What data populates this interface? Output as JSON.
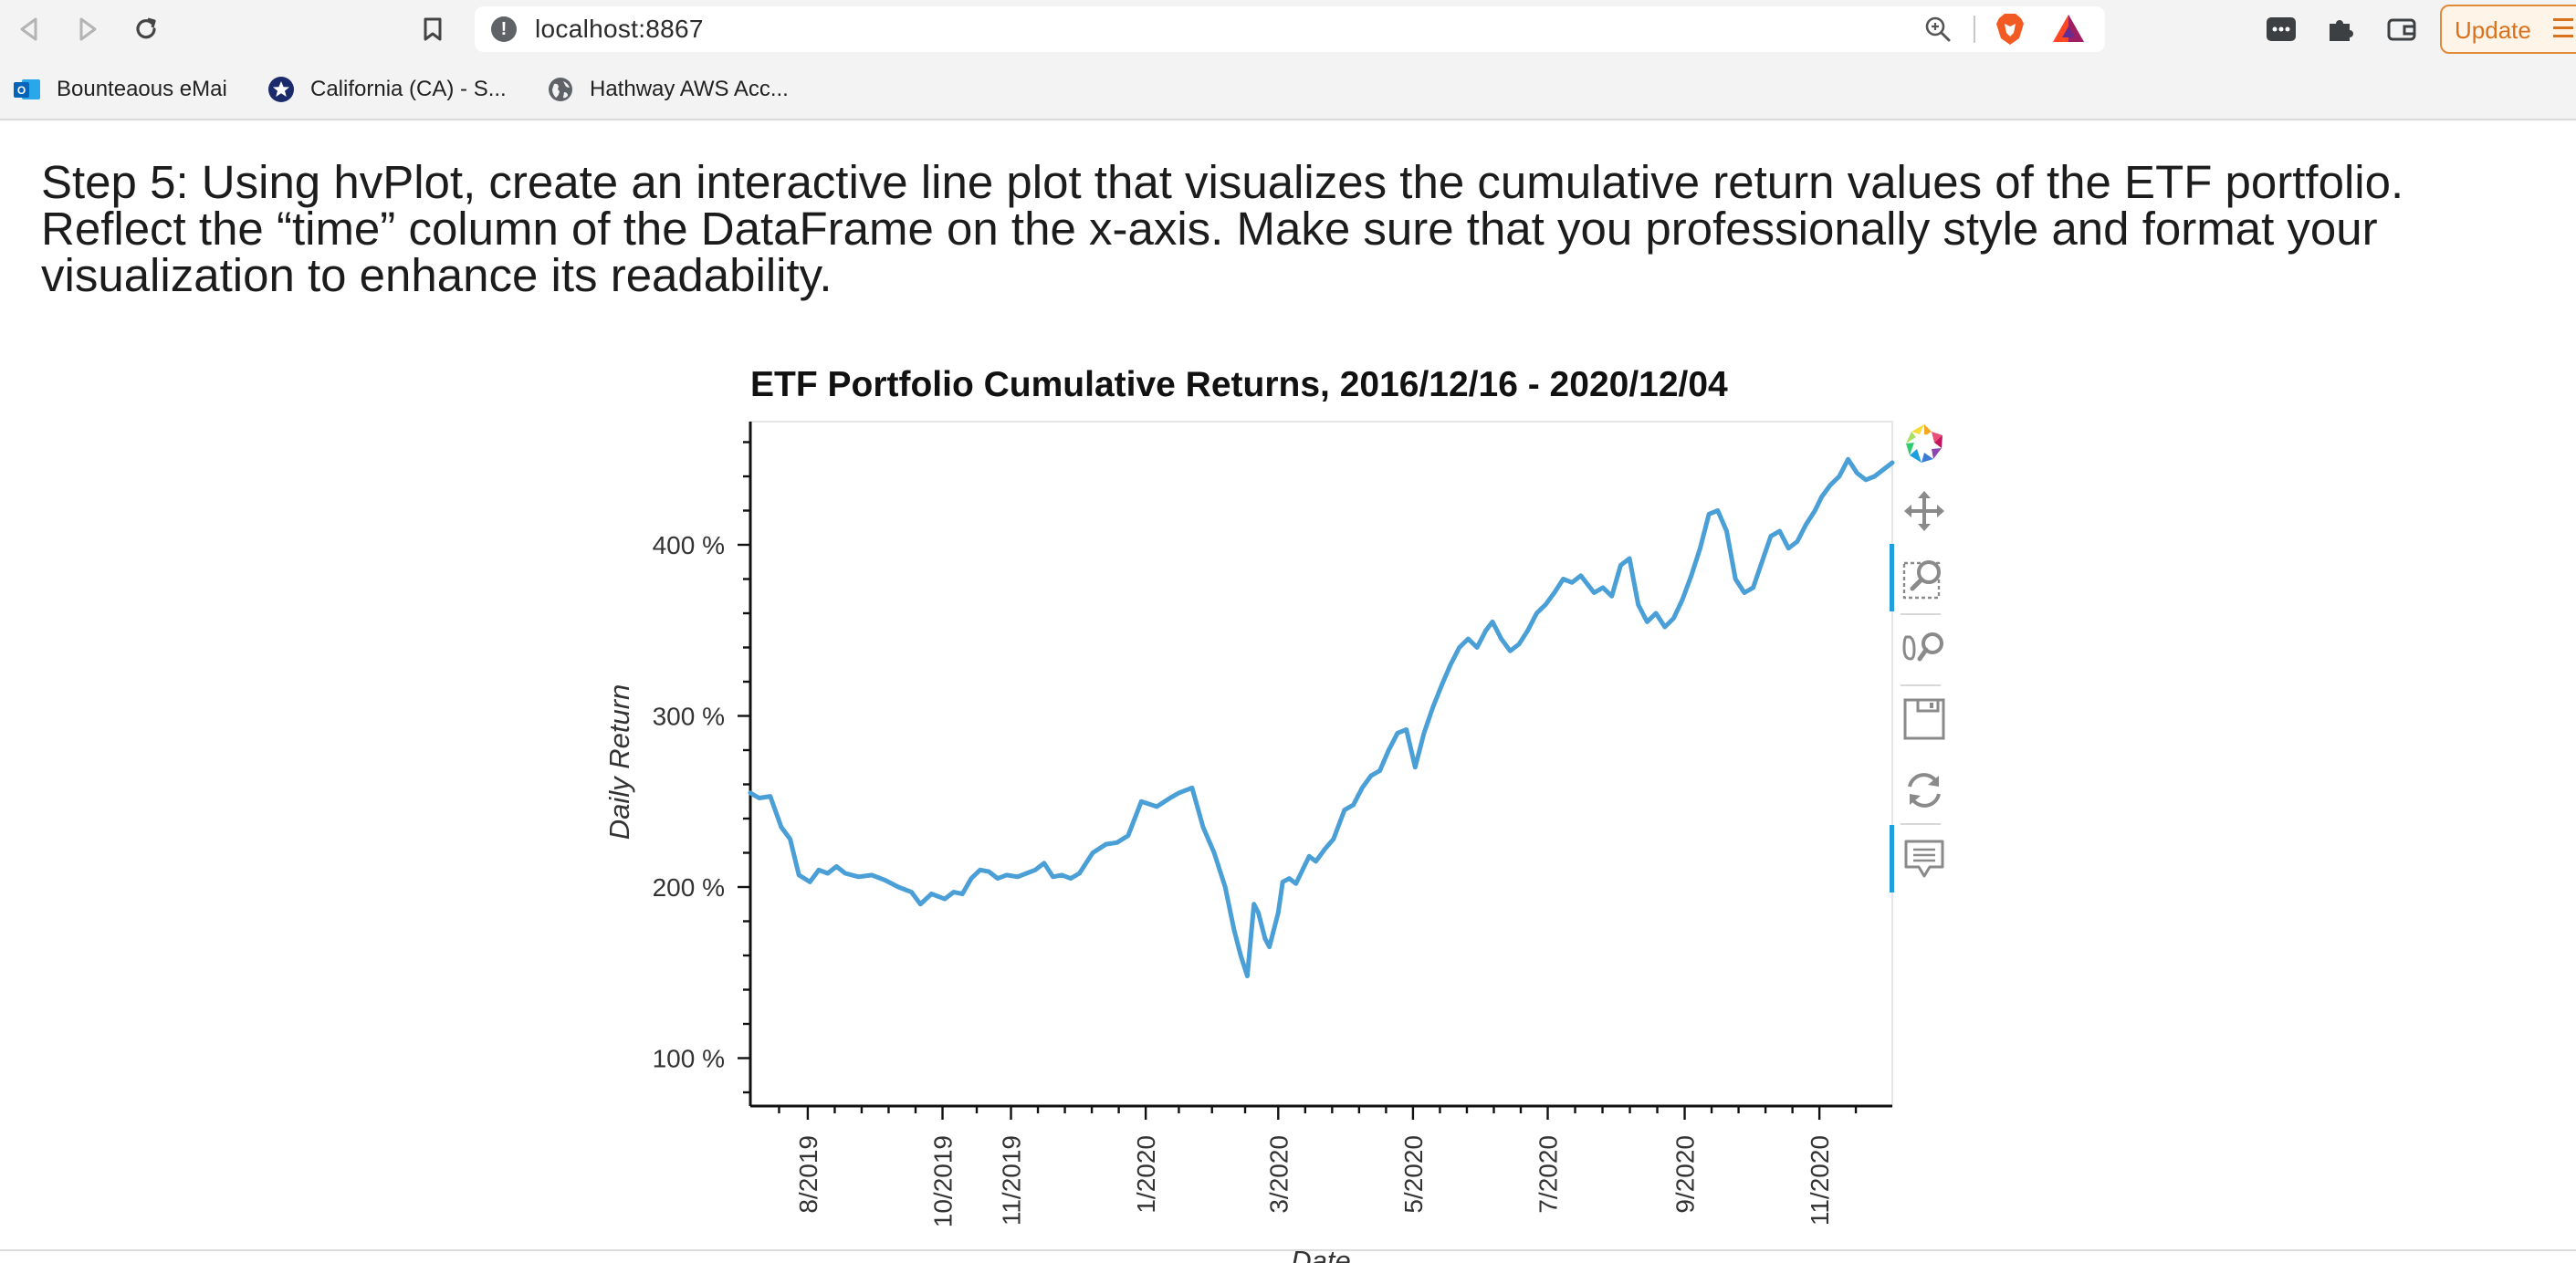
{
  "browser": {
    "url": "localhost:8867",
    "update_label": "Update",
    "bookmarks": [
      {
        "label": "Bounteaous eMai",
        "icon": "outlook-icon"
      },
      {
        "label": "California (CA) - S...",
        "icon": "star-badge-icon"
      },
      {
        "label": "Hathway AWS Acc...",
        "icon": "globe-icon"
      }
    ]
  },
  "page": {
    "instruction": "Step 5: Using hvPlot, create an interactive line plot that visualizes the cumulative return values of the ETF portfolio. Reflect the “time” column of the DataFrame on the x-axis. Make sure that you professionally style and format your visualization to enhance its readability."
  },
  "chart_data": {
    "type": "line",
    "title": "ETF Portfolio Cumulative Returns, 2016/12/16 - 2020/12/04",
    "xlabel": "Date",
    "ylabel": "Daily Return",
    "x_tick_labels": [
      "8/2019",
      "10/2019",
      "11/2019",
      "1/2020",
      "3/2020",
      "5/2020",
      "7/2020",
      "9/2020",
      "11/2020"
    ],
    "y_tick_labels": [
      "100 %",
      "200 %",
      "300 %",
      "400 %"
    ],
    "y_ticks": [
      100,
      200,
      300,
      400
    ],
    "ylim": [
      72,
      472
    ],
    "xlim": [
      "2019-07-06",
      "2020-12-04"
    ],
    "grid": false,
    "line_color": "#4a9fd6",
    "series": [
      {
        "x": [
          "2019-07-06",
          "2019-07-10",
          "2019-07-15",
          "2019-07-20",
          "2019-07-24",
          "2019-07-28",
          "2019-08-02",
          "2019-08-06",
          "2019-08-10",
          "2019-08-14",
          "2019-08-18",
          "2019-08-24",
          "2019-08-30",
          "2019-09-05",
          "2019-09-11",
          "2019-09-17",
          "2019-09-21",
          "2019-09-26",
          "2019-10-02",
          "2019-10-06",
          "2019-10-10",
          "2019-10-14",
          "2019-10-18",
          "2019-10-22",
          "2019-10-26",
          "2019-10-30",
          "2019-11-04",
          "2019-11-08",
          "2019-11-12",
          "2019-11-16",
          "2019-11-20",
          "2019-11-24",
          "2019-11-28",
          "2019-12-02",
          "2019-12-08",
          "2019-12-14",
          "2019-12-19",
          "2019-12-24",
          "2019-12-30",
          "2020-01-06",
          "2020-01-12",
          "2020-01-16",
          "2020-01-22",
          "2020-01-27",
          "2020-02-01",
          "2020-02-06",
          "2020-02-10",
          "2020-02-13",
          "2020-02-16",
          "2020-02-19",
          "2020-02-21",
          "2020-02-24",
          "2020-02-26",
          "2020-03-01",
          "2020-03-03",
          "2020-03-06",
          "2020-03-09",
          "2020-03-12",
          "2020-03-15",
          "2020-03-18",
          "2020-03-22",
          "2020-03-26",
          "2020-03-31",
          "2020-04-04",
          "2020-04-08",
          "2020-04-12",
          "2020-04-16",
          "2020-04-20",
          "2020-04-24",
          "2020-04-28",
          "2020-05-02",
          "2020-05-06",
          "2020-05-10",
          "2020-05-14",
          "2020-05-18",
          "2020-05-22",
          "2020-05-26",
          "2020-05-30",
          "2020-06-03",
          "2020-06-06",
          "2020-06-10",
          "2020-06-14",
          "2020-06-18",
          "2020-06-22",
          "2020-06-26",
          "2020-06-30",
          "2020-07-04",
          "2020-07-08",
          "2020-07-12",
          "2020-07-16",
          "2020-07-22",
          "2020-07-26",
          "2020-07-30",
          "2020-08-03",
          "2020-08-07",
          "2020-08-11",
          "2020-08-15",
          "2020-08-19",
          "2020-08-23",
          "2020-08-27",
          "2020-08-31",
          "2020-09-04",
          "2020-09-08",
          "2020-09-12",
          "2020-09-16",
          "2020-09-20",
          "2020-09-24",
          "2020-09-28",
          "2020-10-02",
          "2020-10-06",
          "2020-10-10",
          "2020-10-14",
          "2020-10-18",
          "2020-10-22",
          "2020-10-26",
          "2020-10-30",
          "2020-11-02",
          "2020-11-06",
          "2020-11-10",
          "2020-11-14",
          "2020-11-18",
          "2020-11-22",
          "2020-11-26",
          "2020-11-30",
          "2020-12-04"
        ],
        "y": [
          255,
          252,
          253,
          235,
          228,
          207,
          203,
          210,
          208,
          212,
          208,
          206,
          207,
          204,
          200,
          197,
          190,
          196,
          193,
          197,
          196,
          205,
          210,
          209,
          205,
          207,
          206,
          208,
          210,
          214,
          206,
          207,
          205,
          208,
          220,
          225,
          226,
          230,
          250,
          247,
          252,
          255,
          258,
          235,
          220,
          200,
          175,
          160,
          148,
          190,
          185,
          170,
          165,
          185,
          203,
          205,
          202,
          210,
          218,
          215,
          222,
          228,
          245,
          248,
          258,
          265,
          268,
          280,
          290,
          292,
          270,
          290,
          305,
          318,
          330,
          340,
          345,
          340,
          350,
          355,
          345,
          338,
          342,
          350,
          360,
          365,
          372,
          380,
          378,
          382,
          372,
          375,
          370,
          388,
          392,
          365,
          355,
          360,
          352,
          357,
          368,
          382,
          398,
          418,
          420,
          408,
          380,
          372,
          375,
          390,
          405,
          408,
          398,
          402,
          412,
          420,
          428,
          435,
          440,
          450,
          442,
          438,
          440,
          444,
          448
        ]
      }
    ]
  }
}
